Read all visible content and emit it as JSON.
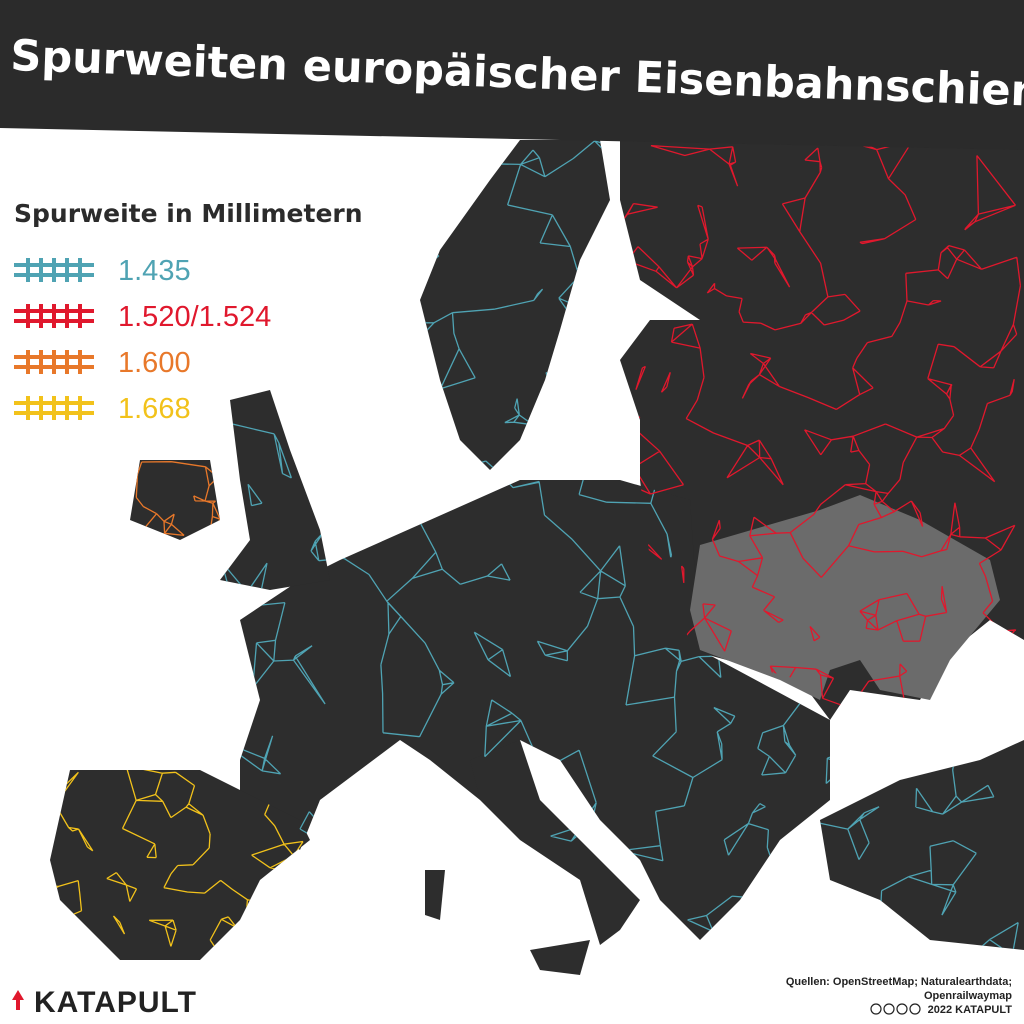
{
  "header": {
    "title": "Spurweiten europäischer Eisenbahnschienen"
  },
  "legend": {
    "title": "Spurweite in Millimetern",
    "items": [
      {
        "label": "1.435",
        "color": "#4fa3b3"
      },
      {
        "label": "1.520/1.524",
        "color": "#e0182d"
      },
      {
        "label": "1.600",
        "color": "#e8782a"
      },
      {
        "label": "1.668",
        "color": "#f2c21b"
      }
    ]
  },
  "sources": [
    "Quellen: OpenStreetMap; Naturalearthdata;",
    "Openrailwaymap",
    "2022 KATAPULT"
  ],
  "logo": "KATAPULT"
}
